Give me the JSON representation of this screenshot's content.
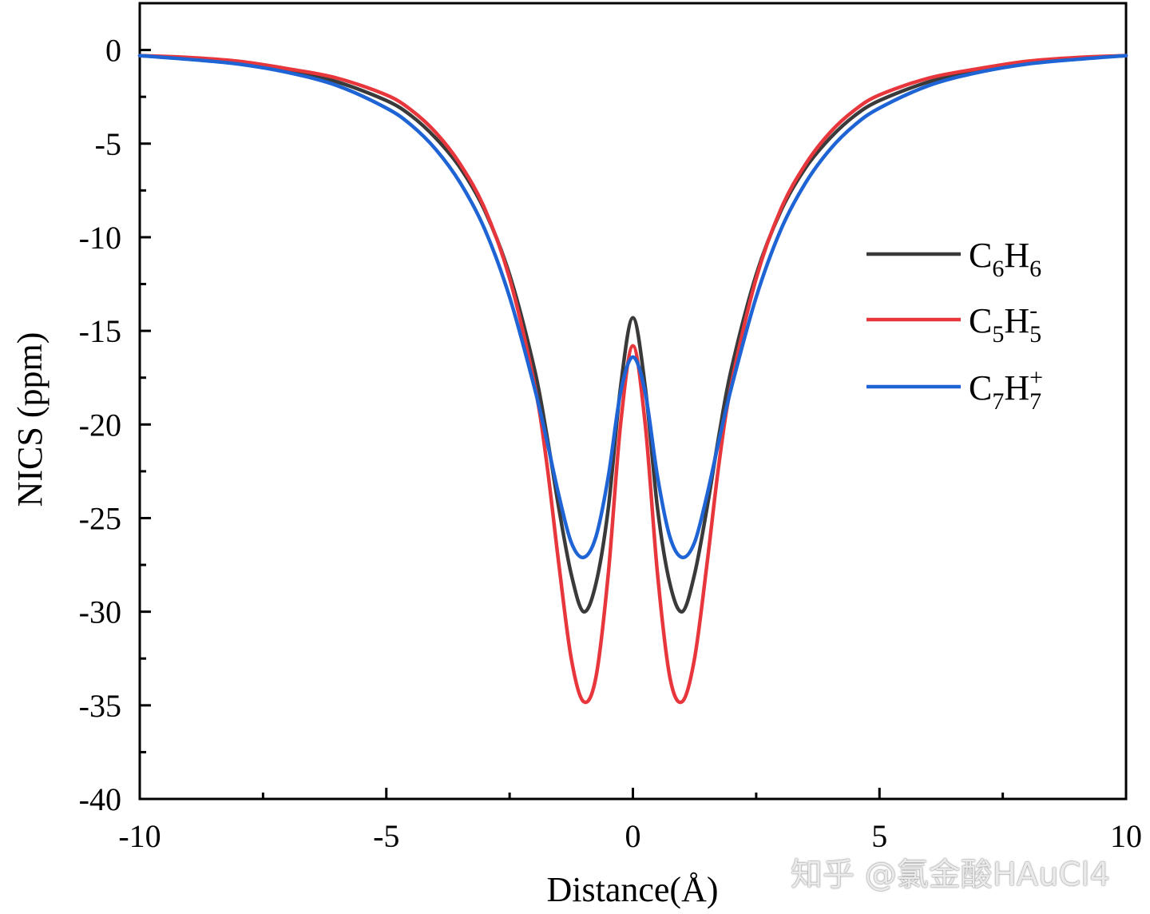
{
  "chart_data": {
    "type": "line",
    "xlabel": "Distance(Å)",
    "ylabel": "NICS (ppm)",
    "xlim": [
      -10,
      10
    ],
    "ylim": [
      -40,
      2.5
    ],
    "xticks": [
      -10,
      -5,
      0,
      5,
      10
    ],
    "yticks": [
      0,
      -5,
      -10,
      -15,
      -20,
      -25,
      -30,
      -35,
      -40
    ],
    "grid": false,
    "legend_position": "right",
    "series": [
      {
        "name": "C6H6",
        "label": {
          "base1": "C",
          "sub1": "6",
          "base2": "H",
          "sub2": "6",
          "sup": ""
        },
        "color": "#3a3a3a",
        "x": [
          -10,
          -9,
          -8,
          -7,
          -6,
          -5,
          -4.5,
          -4,
          -3.5,
          -3,
          -2.5,
          -2,
          -1.75,
          -1.5,
          -1.25,
          -1,
          -0.75,
          -0.5,
          -0.25,
          0,
          0.25,
          0.5,
          0.75,
          1,
          1.25,
          1.5,
          1.75,
          2,
          2.5,
          3,
          3.5,
          4,
          4.5,
          5,
          6,
          7,
          8,
          9,
          10
        ],
        "y": [
          -0.3,
          -0.45,
          -0.7,
          -1.1,
          -1.7,
          -2.7,
          -3.5,
          -4.7,
          -6.3,
          -8.6,
          -12.0,
          -17.0,
          -20.5,
          -24.5,
          -28.0,
          -30.0,
          -28.5,
          -24.5,
          -18.0,
          -14.3,
          -18.0,
          -24.5,
          -28.5,
          -30.0,
          -28.0,
          -24.5,
          -20.5,
          -17.0,
          -12.0,
          -8.6,
          -6.3,
          -4.7,
          -3.5,
          -2.7,
          -1.7,
          -1.1,
          -0.7,
          -0.45,
          -0.3
        ]
      },
      {
        "name": "C5H5-",
        "label": {
          "base1": "C",
          "sub1": "5",
          "base2": "H",
          "sub2": "5",
          "sup": "-"
        },
        "color": "#e8373c",
        "x": [
          -10,
          -9,
          -8,
          -7,
          -6,
          -5,
          -4.5,
          -4,
          -3.5,
          -3,
          -2.5,
          -2,
          -1.75,
          -1.5,
          -1.25,
          -1,
          -0.75,
          -0.5,
          -0.25,
          0,
          0.25,
          0.5,
          0.75,
          1,
          1.25,
          1.5,
          1.75,
          2,
          2.5,
          3,
          3.5,
          4,
          4.5,
          5,
          6,
          7,
          8,
          9,
          10
        ],
        "y": [
          -0.3,
          -0.4,
          -0.6,
          -1.0,
          -1.5,
          -2.4,
          -3.2,
          -4.4,
          -6.1,
          -8.5,
          -12.2,
          -17.8,
          -22.0,
          -27.5,
          -32.5,
          -34.8,
          -33.5,
          -28.0,
          -20.0,
          -15.8,
          -20.0,
          -28.0,
          -33.5,
          -34.8,
          -32.5,
          -27.5,
          -22.0,
          -17.8,
          -12.2,
          -8.5,
          -6.1,
          -4.4,
          -3.2,
          -2.4,
          -1.5,
          -1.0,
          -0.6,
          -0.4,
          -0.3
        ]
      },
      {
        "name": "C7H7+",
        "label": {
          "base1": "C",
          "sub1": "7",
          "base2": "H",
          "sub2": "7",
          "sup": "+"
        },
        "color": "#1f64d4",
        "x": [
          -10,
          -9,
          -8,
          -7,
          -6,
          -5,
          -4.5,
          -4,
          -3.5,
          -3,
          -2.5,
          -2,
          -1.75,
          -1.5,
          -1.25,
          -1,
          -0.75,
          -0.5,
          -0.25,
          0,
          0.25,
          0.5,
          0.75,
          1,
          1.25,
          1.5,
          1.75,
          2,
          2.5,
          3,
          3.5,
          4,
          4.5,
          5,
          6,
          7,
          8,
          9,
          10
        ],
        "y": [
          -0.3,
          -0.5,
          -0.75,
          -1.2,
          -1.9,
          -3.1,
          -4.0,
          -5.3,
          -7.1,
          -9.6,
          -13.2,
          -18.0,
          -20.8,
          -23.8,
          -26.3,
          -27.1,
          -26.0,
          -22.8,
          -18.3,
          -16.4,
          -18.3,
          -22.8,
          -26.0,
          -27.1,
          -26.3,
          -23.8,
          -20.8,
          -18.0,
          -13.2,
          -9.6,
          -7.1,
          -5.3,
          -4.0,
          -3.1,
          -1.9,
          -1.2,
          -0.75,
          -0.5,
          -0.3
        ]
      }
    ]
  },
  "watermark": "知乎 @氯金酸HAuCl4"
}
